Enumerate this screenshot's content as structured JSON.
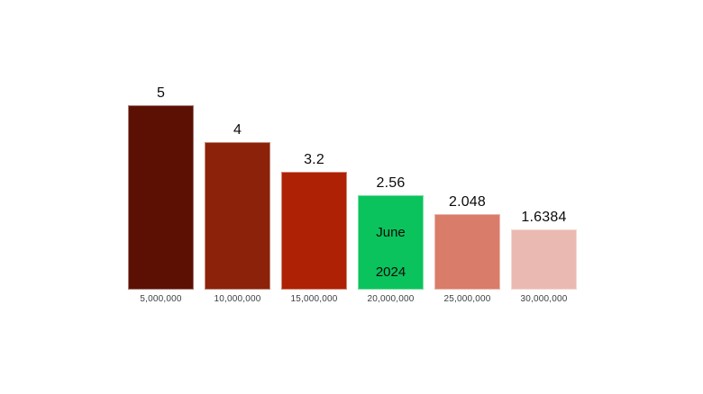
{
  "chart_data": {
    "type": "bar",
    "title": "",
    "xlabel": "",
    "ylabel": "",
    "categories": [
      "5,000,000",
      "10,000,000",
      "15,000,000",
      "20,000,000",
      "25,000,000",
      "30,000,000"
    ],
    "values": [
      5,
      4,
      3.2,
      2.56,
      2.048,
      1.6384
    ],
    "value_labels": [
      "5",
      "4",
      "3.2",
      "2.56",
      "2.048",
      "1.6384"
    ],
    "bar_colors": [
      "#5C1004",
      "#8B2209",
      "#AE2104",
      "#0BC35C",
      "#D97C6A",
      "#EAB9B1"
    ],
    "highlight_index": 3,
    "highlight_color": "#0BC35C",
    "annotation": {
      "bar_index": 3,
      "line1": "June",
      "line2": "2024",
      "text_color": "#0b0b0b"
    },
    "ylim": [
      0,
      5
    ],
    "grid": false,
    "legend": "none",
    "axes_shown": false,
    "background_color": "#ffffff",
    "value_label_color": "#0b0b0b",
    "category_label_color": "#3c4043"
  }
}
